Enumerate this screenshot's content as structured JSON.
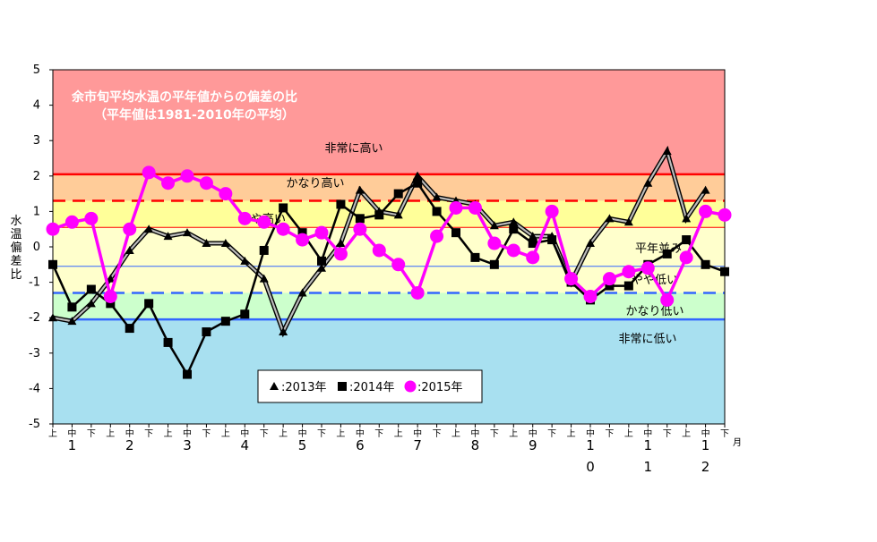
{
  "chart_data": {
    "type": "line",
    "title": "余市旬平均水温の平年値からの偏差の比",
    "subtitle": "（平年値は1981-2010年の平均）",
    "ylabel": "水温偏差比",
    "ylim": [
      -5,
      5
    ],
    "yticks": [
      "5",
      "4",
      "3",
      "2",
      "1",
      "0",
      "-1",
      "-2",
      "-3",
      "-4",
      "-5"
    ],
    "x_unit_label": "月",
    "categories": [
      "上",
      "中",
      "下",
      "上",
      "中",
      "下",
      "上",
      "中",
      "下",
      "上",
      "中",
      "下",
      "上",
      "中",
      "下",
      "上",
      "中",
      "下",
      "上",
      "中",
      "下",
      "上",
      "中",
      "下",
      "上",
      "中",
      "下",
      "上",
      "中",
      "下",
      "上",
      "中",
      "下",
      "上",
      "中",
      "下"
    ],
    "month_labels": [
      "1",
      "2",
      "3",
      "4",
      "5",
      "6",
      "7",
      "8",
      "9",
      "1\n0",
      "1\n1",
      "1\n2"
    ],
    "bands": [
      {
        "label": "非常に高い",
        "from": 2.05,
        "to": 5,
        "color": "#ff9999"
      },
      {
        "label": "かなり高い",
        "from": 1.3,
        "to": 2.05,
        "color": "#ffcc99"
      },
      {
        "label": "やや高い",
        "from": 0.55,
        "to": 1.3,
        "color": "#ffff99"
      },
      {
        "label": "平年並み",
        "from": -0.55,
        "to": 0.55,
        "color": "#ffffcc"
      },
      {
        "label": "やや低い",
        "from": -1.3,
        "to": -0.55,
        "color": "#ffffcc"
      },
      {
        "label": "かなり低い",
        "from": -2.05,
        "to": -1.3,
        "color": "#ccffcc"
      },
      {
        "label": "非常に低い",
        "from": -5,
        "to": -2.05,
        "color": "#a8e0f0"
      }
    ],
    "threshold_lines": [
      {
        "value": 2.05,
        "color": "#ff0000",
        "style": "solid"
      },
      {
        "value": 1.3,
        "color": "#ff0000",
        "style": "dashed"
      },
      {
        "value": 0.55,
        "color": "#ff0000",
        "style": "thin"
      },
      {
        "value": -0.55,
        "color": "#3366ff",
        "style": "thin"
      },
      {
        "value": -1.3,
        "color": "#3366ff",
        "style": "dashed"
      },
      {
        "value": -2.05,
        "color": "#3366ff",
        "style": "solid"
      }
    ],
    "series": [
      {
        "name": "2013年",
        "marker": "triangle",
        "color": "#000000",
        "values": [
          -2.0,
          -2.1,
          -1.6,
          -0.9,
          -0.1,
          0.5,
          0.3,
          0.4,
          0.1,
          0.1,
          -0.4,
          -0.9,
          -2.4,
          -1.3,
          -0.6,
          0.1,
          1.6,
          1.0,
          0.9,
          2.0,
          1.4,
          1.3,
          1.2,
          0.6,
          0.7,
          0.3,
          0.3,
          -1.0,
          0.1,
          0.8,
          0.7,
          1.8,
          2.7,
          0.8,
          1.6,
          null
        ]
      },
      {
        "name": "2014年",
        "marker": "square",
        "color": "#000000",
        "values": [
          -0.5,
          -1.7,
          -1.2,
          -1.6,
          -2.3,
          -1.6,
          -2.7,
          -3.6,
          -2.4,
          -2.1,
          -1.9,
          -0.1,
          1.1,
          0.4,
          -0.4,
          1.2,
          0.8,
          0.9,
          1.5,
          1.8,
          1.0,
          0.4,
          -0.3,
          -0.5,
          0.5,
          0.1,
          0.2,
          -1.0,
          -1.5,
          -1.1,
          -1.1,
          -0.5,
          -0.2,
          0.2,
          -0.5,
          -0.7
        ]
      },
      {
        "name": "2015年",
        "marker": "circle",
        "color": "#ff00ff",
        "values": [
          0.5,
          0.7,
          0.8,
          -1.4,
          0.5,
          2.1,
          1.8,
          2.0,
          1.8,
          1.5,
          0.8,
          0.7,
          0.5,
          0.2,
          0.4,
          -0.2,
          0.5,
          -0.1,
          -0.5,
          -1.3,
          0.3,
          1.1,
          1.1,
          0.1,
          -0.1,
          -0.3,
          1.0,
          -0.9,
          -1.4,
          -0.9,
          -0.7,
          -0.6,
          -1.5,
          -0.3,
          1.0,
          0.9
        ]
      }
    ],
    "legend": {
      "position": "bottom-center",
      "entries": [
        "▲:2013年",
        "■:2014年",
        "●:2015年"
      ]
    },
    "grid": false
  }
}
